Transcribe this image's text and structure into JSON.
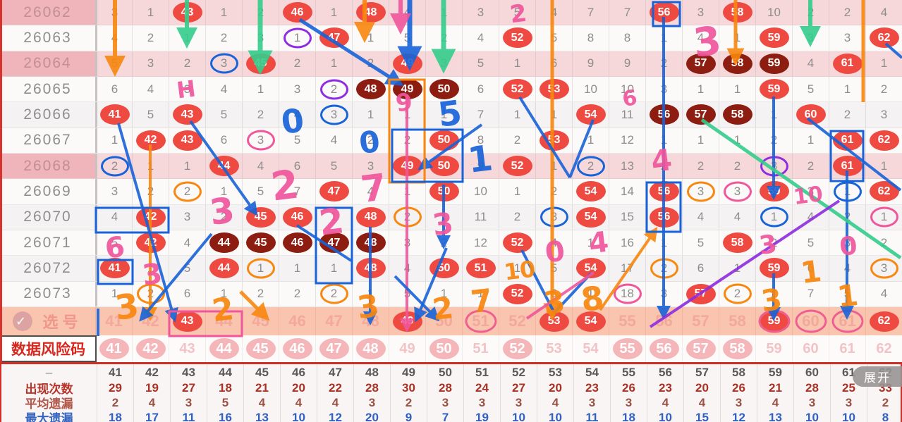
{
  "title": "lottery-trend-chart",
  "header": {
    "columns": [
      41,
      42,
      43,
      44,
      45,
      46,
      47,
      48,
      49,
      50,
      51,
      52,
      53,
      54,
      55,
      56,
      57,
      58,
      59,
      60,
      61,
      62
    ]
  },
  "grid": {
    "periods": [
      {
        "label": "26062",
        "style": "pink",
        "cells": [
          "3",
          "1",
          "*43",
          "1",
          "2",
          "*46",
          "1",
          "*48",
          "4",
          "1",
          "3",
          "5",
          "4",
          "7",
          "7",
          "*56",
          "3",
          "*58",
          "10",
          "2",
          "2",
          "4"
        ]
      },
      {
        "label": "26063",
        "style": "white",
        "cells": [
          "4",
          "2",
          "1",
          "2",
          "3",
          "1|purple",
          "*47",
          "1",
          "5",
          "2",
          "4",
          "*52",
          "5",
          "8",
          "8",
          "1",
          "4",
          "1",
          "*59",
          "3",
          "3",
          "*62"
        ]
      },
      {
        "label": "26064",
        "style": "pink",
        "cells": [
          "5",
          "3",
          "2",
          "3|blue",
          "*45",
          "2",
          "1",
          "2",
          "*49",
          "3",
          "5",
          "1",
          "6",
          "9",
          "9",
          "2",
          "#57",
          "#58",
          "#59",
          "4",
          "*61",
          "1"
        ]
      },
      {
        "label": "26065",
        "style": "white",
        "cells": [
          "6",
          "4",
          "3",
          "4",
          "1",
          "3",
          "2|purple",
          "#48",
          "#49",
          "#50",
          "6",
          "*52",
          "*53",
          "10",
          "10",
          "3",
          "1",
          "1",
          "*59",
          "5",
          "1",
          "2"
        ]
      },
      {
        "label": "26066",
        "style": "grey",
        "cells": [
          "*41",
          "5",
          "*43",
          "5",
          "2",
          "4",
          "3|blue",
          "1",
          "1",
          "1",
          "7",
          "1",
          "1",
          "*54",
          "11",
          "#56",
          "#57",
          "#58",
          "1",
          "*60",
          "2",
          "3"
        ]
      },
      {
        "label": "26067",
        "style": "white",
        "cells": [
          "1",
          "*42",
          "*43",
          "6",
          "3|pink",
          "5",
          "4",
          "2",
          "2",
          "*50",
          "8",
          "2",
          "*53",
          "1",
          "12",
          "1",
          "1",
          "1",
          "2",
          "1",
          "*61",
          "*62"
        ]
      },
      {
        "label": "26068",
        "style": "pink",
        "cells": [
          "2|blue",
          "1",
          "1",
          "*44",
          "4",
          "6",
          "5",
          "3",
          "*49",
          "*50",
          "9",
          "*52",
          "1",
          "2|blue",
          "13",
          "2",
          "2",
          "2",
          "3|purple",
          "2",
          "*61",
          "1"
        ]
      },
      {
        "label": "26069",
        "style": "white",
        "cells": [
          "3",
          "2",
          "2|orange",
          "1",
          "5",
          "7",
          "*47",
          "4",
          "1",
          "*50",
          "10",
          "1",
          "2",
          "*54",
          "14",
          "*56",
          "3|orange",
          "3|pink",
          "*59",
          "3",
          "1|blue",
          "*62"
        ]
      },
      {
        "label": "26070",
        "style": "grey",
        "cells": [
          "4",
          "*42",
          "3",
          "2",
          "*45",
          "*46",
          "1",
          "*48",
          "2|orange",
          "1",
          "11",
          "2",
          "3|blue",
          "*54",
          "15",
          "*56",
          "4",
          "4",
          "1|blue",
          "4",
          "2",
          "1|pink"
        ]
      },
      {
        "label": "26071",
        "style": "white",
        "cells": [
          "5",
          "*42",
          "4",
          "#44",
          "#45",
          "#46",
          "#47",
          "#48",
          "3",
          "2",
          "12",
          "*52",
          "4",
          "1",
          "16",
          "1",
          "5",
          "*58",
          "2",
          "5",
          "3",
          "2"
        ]
      },
      {
        "label": "26072",
        "style": "grey",
        "cells": [
          "*41",
          "1",
          "5",
          "*44",
          "1|orange",
          "1",
          "1",
          "*48",
          "4",
          "*50",
          "*51",
          "1",
          "5",
          "*54",
          "17",
          "2|orange",
          "6",
          "1",
          "*59",
          "6",
          "4",
          "3|orange"
        ]
      },
      {
        "label": "26073",
        "style": "white",
        "cells": [
          "1",
          "2|orange",
          "6",
          "1",
          "2",
          "2",
          "2|orange",
          "1",
          "5",
          "1",
          "1",
          "*52",
          "6",
          "1",
          "18|pink",
          "3",
          "*57",
          "2|orange",
          "1",
          "7",
          "5",
          "4"
        ]
      }
    ]
  },
  "select_row": {
    "label": "选号",
    "check_icon": "✓",
    "numbers": [
      41,
      42,
      43,
      44,
      45,
      46,
      47,
      48,
      49,
      50,
      51,
      52,
      53,
      54,
      55,
      56,
      57,
      58,
      59,
      60,
      61,
      62
    ],
    "balls": [
      43,
      49,
      53,
      54,
      59,
      62
    ],
    "rings": [
      51,
      59,
      60,
      61
    ]
  },
  "risk_row": {
    "label": "数据风险码",
    "numbers": [
      41,
      42,
      43,
      44,
      45,
      46,
      47,
      48,
      49,
      50,
      51,
      52,
      53,
      54,
      55,
      56,
      57,
      58,
      59,
      60,
      61,
      62
    ],
    "circled": [
      41,
      42,
      44,
      45,
      46,
      47,
      48,
      50,
      52,
      55,
      56,
      57,
      58
    ]
  },
  "stats": {
    "corner_label": "–",
    "expand_label": "展开",
    "columns": [
      41,
      42,
      43,
      44,
      45,
      46,
      47,
      48,
      49,
      50,
      51,
      52,
      53,
      54,
      55,
      56,
      57,
      58,
      59,
      60,
      61,
      62
    ],
    "rows": [
      {
        "label": "出现次数",
        "color": "#b5352b",
        "value_color": "#a93226",
        "values": [
          29,
          19,
          27,
          18,
          21,
          20,
          22,
          28,
          30,
          28,
          24,
          27,
          20,
          23,
          26,
          23,
          20,
          26,
          21,
          28,
          25,
          33
        ]
      },
      {
        "label": "平均遗漏",
        "color": "#b2564a",
        "value_color": "#9c5044",
        "values": [
          2,
          4,
          3,
          5,
          4,
          4,
          4,
          3,
          2,
          3,
          3,
          3,
          4,
          3,
          3,
          4,
          4,
          3,
          4,
          3,
          3,
          2
        ]
      },
      {
        "label": "最大遗漏",
        "color": "#3564c0",
        "value_color": "#3060c4",
        "values": [
          18,
          17,
          11,
          16,
          13,
          10,
          12,
          20,
          9,
          7,
          19,
          10,
          10,
          11,
          18,
          10,
          15,
          12,
          13,
          10,
          10,
          8
        ]
      }
    ]
  },
  "annotations": {
    "colors": {
      "blue": "#1863d8",
      "orange": "#f8870f",
      "green": "#35cd8c",
      "pink": "#f0569c",
      "purple": "#8f2be0"
    },
    "lines": [
      [
        163,
        0,
        163,
        100,
        "orange",
        6,
        1
      ],
      [
        265,
        0,
        265,
        60,
        "green",
        6,
        1
      ],
      [
        369,
        0,
        369,
        96,
        "green",
        7,
        1
      ],
      [
        517,
        0,
        517,
        52,
        "orange",
        6,
        1
      ],
      [
        581,
        0,
        581,
        90,
        "blue",
        7,
        1
      ],
      [
        568,
        0,
        568,
        40,
        "pink",
        6,
        1
      ],
      [
        629,
        0,
        629,
        94,
        "green",
        7,
        1
      ],
      [
        783,
        0,
        783,
        448,
        "orange",
        5,
        1
      ],
      [
        1043,
        0,
        1043,
        86,
        "orange",
        5,
        1
      ],
      [
        1149,
        0,
        1149,
        58,
        "green",
        6,
        1
      ],
      [
        1224,
        0,
        1224,
        145,
        "orange",
        5,
        0
      ],
      [
        213,
        205,
        213,
        450,
        "orange",
        4,
        1
      ],
      [
        577,
        135,
        577,
        466,
        "pink",
        4,
        1
      ],
      [
        941,
        24,
        941,
        448,
        "blue",
        4,
        1
      ],
      [
        1201,
        242,
        1201,
        448,
        "blue",
        4,
        1
      ],
      [
        525,
        322,
        525,
        456,
        "blue",
        4,
        1
      ],
      [
        629,
        262,
        629,
        348,
        "blue",
        4,
        1
      ],
      [
        1097,
        137,
        1097,
        278,
        "blue",
        4,
        1
      ],
      [
        1097,
        388,
        1097,
        450,
        "blue",
        4,
        1
      ],
      [
        425,
        28,
        566,
        118,
        "blue",
        5,
        1
      ],
      [
        168,
        175,
        247,
        452,
        "blue",
        4,
        1
      ],
      [
        270,
        172,
        362,
        302,
        "blue",
        4,
        1
      ],
      [
        300,
        332,
        201,
        452,
        "blue",
        4,
        1
      ],
      [
        683,
        177,
        597,
        238,
        "blue",
        4,
        1
      ],
      [
        737,
        138,
        808,
        252,
        "blue",
        4,
        0
      ],
      [
        808,
        252,
        841,
        170,
        "blue",
        4,
        0
      ],
      [
        740,
        355,
        786,
        444,
        "blue",
        4,
        0
      ],
      [
        786,
        444,
        838,
        388,
        "blue",
        4,
        0
      ],
      [
        633,
        352,
        591,
        452,
        "blue",
        4,
        1
      ],
      [
        560,
        392,
        619,
        452,
        "blue",
        4,
        1
      ],
      [
        1145,
        168,
        1277,
        270,
        "blue",
        4,
        0
      ],
      [
        1256,
        62,
        1279,
        82,
        "blue",
        4,
        0
      ],
      [
        995,
        170,
        1277,
        366,
        "green",
        5,
        0
      ],
      [
        922,
        464,
        1190,
        285,
        "purple",
        4,
        0
      ],
      [
        851,
        440,
        929,
        327,
        "orange",
        4,
        1
      ],
      [
        747,
        452,
        842,
        387,
        "pink",
        4,
        0
      ],
      [
        341,
        414,
        377,
        450,
        "orange",
        5,
        1
      ],
      [
        421,
        320,
        498,
        370,
        "blue",
        4,
        0
      ],
      [
        139,
        438,
        139,
        477,
        "blue",
        4,
        0
      ]
    ],
    "rects": [
      [
        926,
        3,
        38,
        34,
        "blue"
      ],
      [
        552,
        113,
        50,
        146,
        "orange"
      ],
      [
        556,
        184,
        100,
        74,
        "blue"
      ],
      [
        1178,
        186,
        46,
        71,
        "blue"
      ],
      [
        448,
        295,
        51,
        107,
        "blue"
      ],
      [
        136,
        295,
        103,
        35,
        "blue"
      ],
      [
        139,
        369,
        49,
        34,
        "blue"
      ],
      [
        917,
        259,
        48,
        70,
        "blue"
      ],
      [
        240,
        442,
        103,
        35,
        "pink"
      ]
    ],
    "digits": [
      [
        "2",
        735,
        20,
        34,
        "pink"
      ],
      [
        "3",
        1003,
        60,
        56,
        "pink"
      ],
      [
        "H",
        264,
        127,
        32,
        "pink"
      ],
      [
        "6",
        893,
        140,
        30,
        "pink"
      ],
      [
        "9",
        573,
        146,
        34,
        "pink"
      ],
      [
        "2",
        404,
        264,
        56,
        "pink"
      ],
      [
        "7",
        530,
        268,
        52,
        "pink"
      ],
      [
        "3",
        315,
        300,
        50,
        "pink"
      ],
      [
        "2",
        470,
        315,
        50,
        "pink"
      ],
      [
        "3",
        628,
        318,
        42,
        "pink"
      ],
      [
        "10",
        1146,
        278,
        30,
        "pink"
      ],
      [
        "4",
        938,
        228,
        42,
        "pink"
      ],
      [
        "6",
        163,
        352,
        40,
        "pink"
      ],
      [
        "3",
        216,
        390,
        40,
        "pink"
      ],
      [
        "4",
        849,
        345,
        40,
        "pink"
      ],
      [
        "3",
        1089,
        348,
        36,
        "pink"
      ],
      [
        "0",
        787,
        358,
        40,
        "pink"
      ],
      [
        "0",
        1203,
        350,
        36,
        "pink"
      ],
      [
        "0",
        415,
        172,
        46,
        "blue"
      ],
      [
        "5",
        638,
        162,
        48,
        "blue"
      ],
      [
        "0",
        524,
        202,
        42,
        "blue"
      ],
      [
        "1",
        681,
        226,
        50,
        "blue"
      ],
      [
        "3",
        180,
        436,
        48,
        "orange"
      ],
      [
        "2",
        316,
        440,
        44,
        "orange"
      ],
      [
        "3",
        522,
        436,
        44,
        "orange"
      ],
      [
        "2",
        628,
        438,
        42,
        "orange"
      ],
      [
        "7",
        683,
        428,
        44,
        "orange"
      ],
      [
        "3",
        786,
        430,
        44,
        "orange"
      ],
      [
        "8",
        840,
        424,
        46,
        "orange"
      ],
      [
        "10",
        737,
        384,
        32,
        "orange"
      ],
      [
        "1",
        1150,
        386,
        42,
        "orange"
      ],
      [
        "3",
        1094,
        426,
        42,
        "orange"
      ],
      [
        "1",
        1202,
        420,
        42,
        "orange"
      ]
    ]
  }
}
